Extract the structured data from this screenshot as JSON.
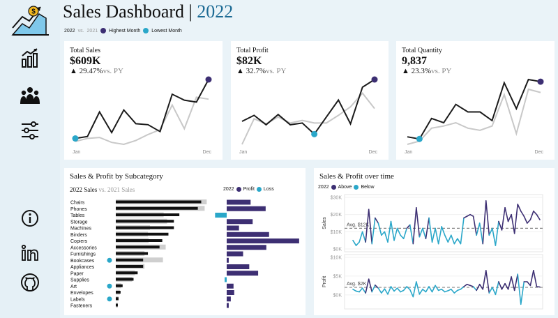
{
  "header": {
    "title": "Sales Dashboard",
    "separator": "|",
    "year": "2022"
  },
  "legend_top": {
    "current": "2022",
    "vs": "vs.",
    "previous": "2021",
    "highest": "Highest Month",
    "lowest": "Lowest Month"
  },
  "colors": {
    "current_line": "#1a1a1a",
    "previous_line": "#c8c8c8",
    "highest": "#3d2f73",
    "lowest": "#2aa7c9",
    "title_year": "#1c6a94"
  },
  "sidebar": {
    "items": [
      {
        "icon": "dollar-trend-logo-icon"
      },
      {
        "icon": "bar-chart-icon"
      },
      {
        "icon": "people-icon"
      },
      {
        "icon": "sliders-icon"
      },
      {
        "icon": "info-icon"
      },
      {
        "icon": "linkedin-icon"
      },
      {
        "icon": "github-icon"
      }
    ]
  },
  "kpis": [
    {
      "label": "Total Sales",
      "value": "$609K",
      "change": "▲ 29.47%",
      "change_suffix": "vs. PY",
      "x_start": "Jan",
      "x_end": "Dec",
      "current": [
        48,
        50,
        75,
        54,
        77,
        63,
        62,
        55,
        93,
        87,
        85,
        108
      ],
      "previous": [
        45,
        48,
        49,
        44,
        42,
        46,
        52,
        57,
        82,
        58,
        90,
        88
      ],
      "high_index": 11,
      "low_index": 0
    },
    {
      "label": "Total Profit",
      "value": "$82K",
      "change": "▲ 32.7%",
      "change_suffix": "vs. PY",
      "x_start": "Jan",
      "x_end": "Dec",
      "current": [
        55,
        62,
        51,
        63,
        51,
        53,
        40,
        60,
        80,
        52,
        95,
        104
      ],
      "previous": [
        28,
        58,
        52,
        60,
        53,
        56,
        53,
        53,
        62,
        72,
        88,
        70
      ],
      "high_index": 11,
      "low_index": 6
    },
    {
      "label": "Total Quantity",
      "value": "9,837",
      "change": "▲ 23.3%",
      "change_suffix": "vs. PY",
      "x_start": "Jan",
      "x_end": "Dec",
      "current": [
        57,
        55,
        74,
        70,
        87,
        80,
        80,
        72,
        107,
        83,
        110,
        108
      ],
      "previous": [
        50,
        53,
        65,
        67,
        70,
        65,
        63,
        67,
        96,
        60,
        101,
        98
      ],
      "high_index": 11,
      "low_index": 1
    }
  ],
  "subcategory": {
    "title": "Sales & Profit by Subcategory",
    "sales_legend_current": "2022 Sales",
    "sales_legend_vs": "vs.",
    "sales_legend_previous": "2021 Sales",
    "profit_legend_year": "2022",
    "profit_legend_profit": "Profit",
    "profit_legend_loss": "Loss",
    "rows": [
      {
        "name": "Chairs",
        "sales": 125,
        "prev": 133,
        "profit": 35,
        "loss_marker": false
      },
      {
        "name": "Phones",
        "sales": 120,
        "prev": 130,
        "profit": 57,
        "loss_marker": false
      },
      {
        "name": "Tables",
        "sales": 93,
        "prev": 70,
        "profit": -17,
        "loss_marker": false
      },
      {
        "name": "Storage",
        "sales": 85,
        "prev": 75,
        "profit": 38,
        "loss_marker": false
      },
      {
        "name": "Machines",
        "sales": 85,
        "prev": 50,
        "profit": 18,
        "loss_marker": false
      },
      {
        "name": "Binders",
        "sales": 77,
        "prev": 47,
        "profit": 62,
        "loss_marker": false
      },
      {
        "name": "Copiers",
        "sales": 68,
        "prev": 48,
        "profit": 106,
        "loss_marker": false
      },
      {
        "name": "Accessories",
        "sales": 64,
        "prev": 73,
        "profit": 58,
        "loss_marker": false
      },
      {
        "name": "Furnishings",
        "sales": 47,
        "prev": 42,
        "profit": 24,
        "loss_marker": false
      },
      {
        "name": "Bookcases",
        "sales": 40,
        "prev": 69,
        "profit": 3,
        "loss_marker": true
      },
      {
        "name": "Appliances",
        "sales": 40,
        "prev": 42,
        "profit": 33,
        "loss_marker": false
      },
      {
        "name": "Paper",
        "sales": 32,
        "prev": 28,
        "profit": 46,
        "loss_marker": false
      },
      {
        "name": "Supplies",
        "sales": 26,
        "prev": 24,
        "profit": -3,
        "loss_marker": false
      },
      {
        "name": "Art",
        "sales": 10,
        "prev": 8,
        "profit": 10,
        "loss_marker": true
      },
      {
        "name": "Envelopes",
        "sales": 7,
        "prev": 6,
        "profit": 11,
        "loss_marker": false
      },
      {
        "name": "Labels",
        "sales": 4,
        "prev": 4,
        "profit": 6,
        "loss_marker": true
      },
      {
        "name": "Fasteners",
        "sales": 3,
        "prev": 3,
        "profit": 3,
        "loss_marker": false
      }
    ]
  },
  "overtime": {
    "title": "Sales & Profit over time",
    "legend_year": "2022",
    "legend_above": "Above",
    "legend_below": "Below",
    "sales": {
      "ylabel": "Sales",
      "ticks": [
        "$30K",
        "$20K",
        "$10K",
        "$0K"
      ],
      "tick_values": [
        30,
        20,
        10,
        0
      ],
      "ymax": 30,
      "avg_label": "Avg. $12K",
      "avg": 12,
      "values": [
        5,
        2,
        4,
        10,
        4,
        23,
        3,
        18,
        15,
        8,
        10,
        4,
        16,
        5,
        12,
        8,
        6,
        12,
        14,
        3,
        24,
        7,
        12,
        6,
        18,
        4,
        12,
        3,
        13,
        8,
        4,
        8,
        3,
        6,
        3,
        18,
        19,
        20,
        19,
        8,
        15,
        3,
        28,
        8,
        12,
        2,
        16,
        11,
        24,
        16,
        20,
        9,
        26,
        22,
        19,
        15,
        17,
        22,
        20,
        17
      ]
    },
    "profit": {
      "ylabel": "Profit",
      "ticks": [
        "$10K",
        "$5K",
        "$0K"
      ],
      "tick_values": [
        10,
        5,
        0
      ],
      "ymin": -3,
      "ymax": 10,
      "avg_label": "Avg. $2K",
      "avg": 2,
      "values": [
        1.5,
        1,
        0.8,
        1.8,
        0.5,
        4.2,
        0.8,
        2.6,
        1.8,
        0.5,
        1.6,
        0.2,
        2.2,
        1,
        1.8,
        0.8,
        1.2,
        2.2,
        1.4,
        -0.5,
        3.5,
        0.2,
        1.5,
        0.8,
        2.2,
        0.8,
        2.5,
        1.2,
        1.5,
        0.8,
        1.1,
        1.5,
        0.5,
        1.2,
        1.5,
        2.2,
        2.8,
        2.5,
        2.2,
        1.2,
        2.8,
        1.5,
        6.5,
        0.5,
        2,
        0.1,
        3.5,
        1.5,
        3,
        1.5,
        4.8,
        1.2,
        5.5,
        -2.5,
        3.5,
        3.5,
        2.5,
        6.5,
        2.2,
        2.1
      ]
    }
  }
}
